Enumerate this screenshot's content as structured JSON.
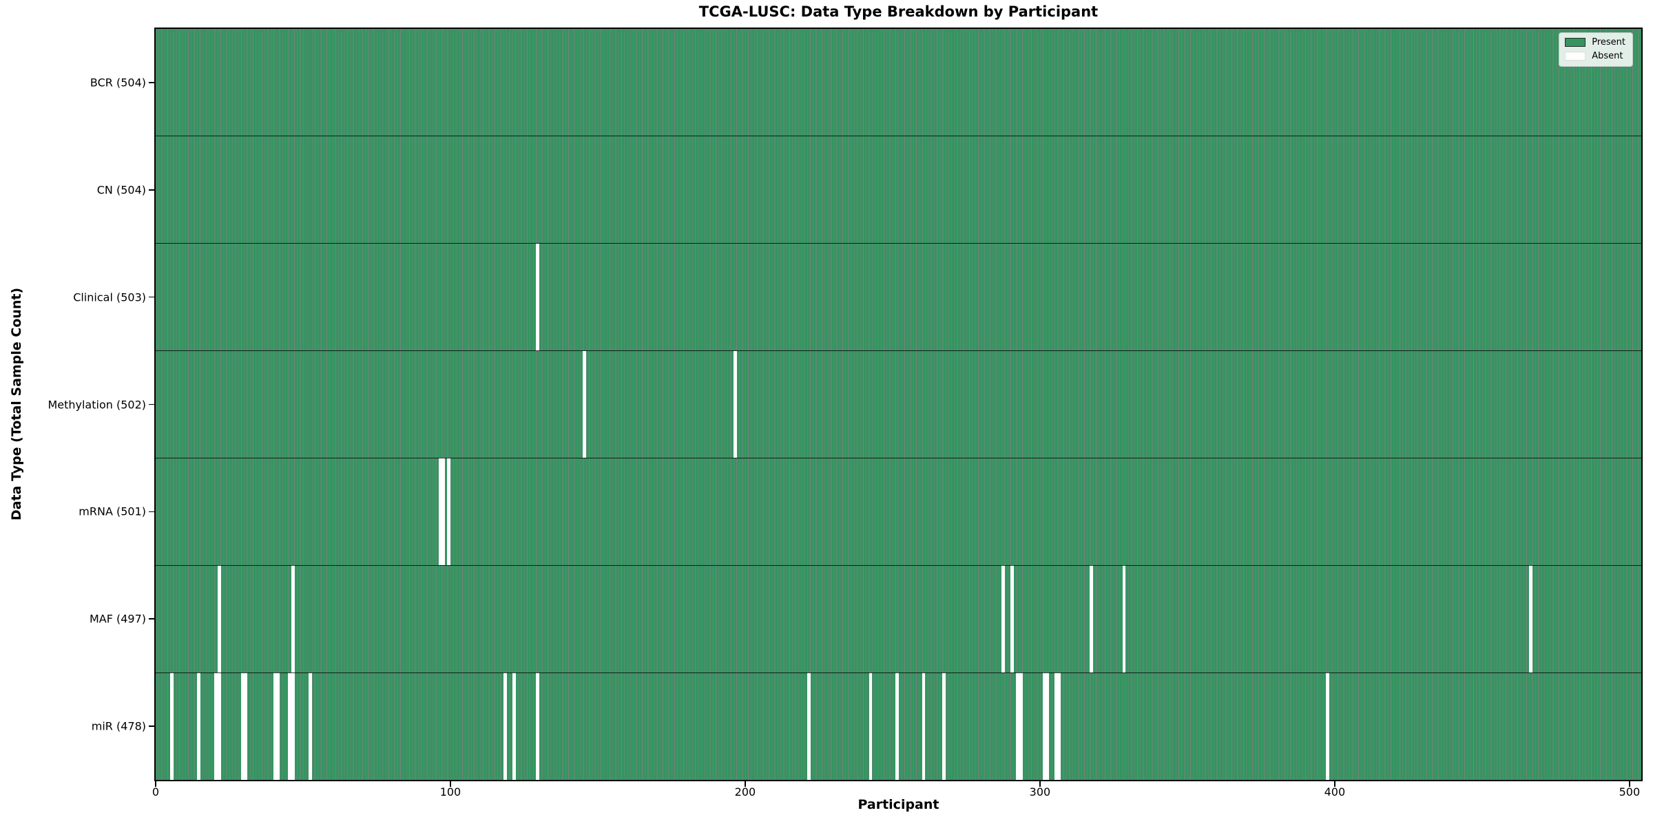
{
  "title": "TCGA-LUSC: Data Type Breakdown by Participant",
  "xlabel": "Participant",
  "ylabel": "Data Type (Total Sample Count)",
  "legend": {
    "present_label": "Present",
    "absent_label": "Absent"
  },
  "colors": {
    "present": "#349561",
    "absent": "#ffffff",
    "bar_edge": "rgba(0,0,0,0.5)",
    "axis": "#000000"
  },
  "chart_data": {
    "type": "heatmap",
    "title": "TCGA-LUSC: Data Type Breakdown by Participant",
    "xlabel": "Participant",
    "ylabel": "Data Type (Total Sample Count)",
    "legend_entries": [
      "Present",
      "Absent"
    ],
    "legend_position": "upper right",
    "n_participants": 504,
    "xlim": [
      0,
      504
    ],
    "x_ticks": [
      0,
      100,
      200,
      300,
      400,
      500
    ],
    "rows": [
      {
        "label": "BCR (504)",
        "name": "BCR",
        "total": 504,
        "absent": []
      },
      {
        "label": "CN (504)",
        "name": "CN",
        "total": 504,
        "absent": []
      },
      {
        "label": "Clinical (503)",
        "name": "Clinical",
        "total": 503,
        "absent": [
          129
        ]
      },
      {
        "label": "Methylation (502)",
        "name": "Methylation",
        "total": 502,
        "absent": [
          145,
          196
        ]
      },
      {
        "label": "mRNA (501)",
        "name": "mRNA",
        "total": 501,
        "absent": [
          96,
          97,
          99
        ]
      },
      {
        "label": "MAF (497)",
        "name": "MAF",
        "total": 497,
        "absent": [
          21,
          46,
          287,
          290,
          317,
          328,
          466
        ]
      },
      {
        "label": "miR (478)",
        "name": "miR",
        "total": 478,
        "absent": [
          5,
          14,
          20,
          21,
          29,
          30,
          40,
          41,
          45,
          46,
          52,
          118,
          121,
          129,
          221,
          242,
          251,
          260,
          267,
          292,
          293,
          301,
          302,
          305,
          306,
          397
        ]
      }
    ]
  }
}
